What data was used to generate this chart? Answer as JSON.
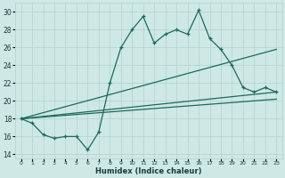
{
  "xlabel": "Humidex (Indice chaleur)",
  "ylabel": "",
  "background_color": "#cee8e6",
  "grid_color": "#b8d4d0",
  "line_color": "#1a6b5a",
  "xlim": [
    -0.5,
    23.5
  ],
  "ylim": [
    13.5,
    31
  ],
  "yticks": [
    14,
    16,
    18,
    20,
    22,
    24,
    26,
    28,
    30
  ],
  "xticks": [
    0,
    1,
    2,
    3,
    4,
    5,
    6,
    7,
    8,
    9,
    10,
    11,
    12,
    13,
    14,
    15,
    16,
    17,
    18,
    19,
    20,
    21,
    22,
    23
  ],
  "xtick_labels": [
    "0",
    "1",
    "2",
    "3",
    "4",
    "5",
    "6",
    "7",
    "8",
    "9",
    "10",
    "11",
    "12",
    "13",
    "14",
    "15",
    "16",
    "17",
    "18",
    "19",
    "20",
    "21",
    "22",
    "23"
  ],
  "series1_x": [
    0,
    1,
    2,
    3,
    4,
    5,
    6,
    7,
    8,
    9,
    10,
    11,
    12,
    13,
    14,
    15,
    16,
    17,
    18,
    19,
    20,
    21,
    22,
    23
  ],
  "series1_y": [
    18,
    17.5,
    16.2,
    15.8,
    16,
    16,
    14.5,
    16.5,
    22,
    26,
    28,
    29.5,
    26.5,
    27.5,
    28,
    27.5,
    30.2,
    27,
    25.8,
    24,
    21.5,
    21,
    21.5,
    21
  ],
  "series2_x": [
    0,
    23
  ],
  "series2_y": [
    18,
    25.8
  ],
  "series3_x": [
    0,
    23
  ],
  "series3_y": [
    18,
    21.0
  ],
  "series4_x": [
    0,
    23
  ],
  "series4_y": [
    18,
    20.2
  ]
}
